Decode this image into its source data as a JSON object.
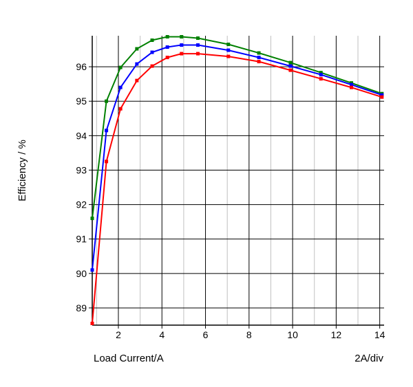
{
  "chart_data": {
    "type": "line",
    "title": "",
    "xlabel": "Load Current/A",
    "ylabel": "Efficiency / %",
    "x_scale_note": "2A/div",
    "xlim": [
      0.8,
      14.2
    ],
    "ylim": [
      88.5,
      96.9
    ],
    "x_ticks": [
      2,
      4,
      6,
      8,
      10,
      12,
      14
    ],
    "y_ticks": [
      89,
      90,
      91,
      92,
      93,
      94,
      95,
      96
    ],
    "grid": true,
    "legend": "none",
    "series": [
      {
        "color": "#008000",
        "x": [
          0.8,
          1.45,
          2.1,
          2.85,
          3.55,
          4.25,
          4.9,
          5.65,
          7.05,
          8.45,
          9.9,
          11.3,
          12.7,
          14.1
        ],
        "y": [
          91.6,
          95.0,
          95.98,
          96.52,
          96.77,
          96.87,
          96.87,
          96.83,
          96.65,
          96.4,
          96.12,
          95.83,
          95.53,
          95.22
        ]
      },
      {
        "color": "#0000ff",
        "x": [
          0.8,
          1.45,
          2.1,
          2.85,
          3.55,
          4.25,
          4.9,
          5.65,
          7.05,
          8.45,
          9.9,
          11.3,
          12.7,
          14.1
        ],
        "y": [
          90.1,
          94.15,
          95.4,
          96.08,
          96.42,
          96.57,
          96.63,
          96.63,
          96.48,
          96.27,
          96.02,
          95.77,
          95.48,
          95.18
        ]
      },
      {
        "color": "#ff0000",
        "x": [
          0.8,
          1.45,
          2.1,
          2.85,
          3.55,
          4.25,
          4.9,
          5.65,
          7.05,
          8.45,
          9.9,
          11.3,
          12.7,
          14.1
        ],
        "y": [
          88.55,
          93.25,
          94.78,
          95.6,
          96.02,
          96.27,
          96.38,
          96.38,
          96.3,
          96.15,
          95.9,
          95.65,
          95.4,
          95.12
        ]
      }
    ]
  }
}
